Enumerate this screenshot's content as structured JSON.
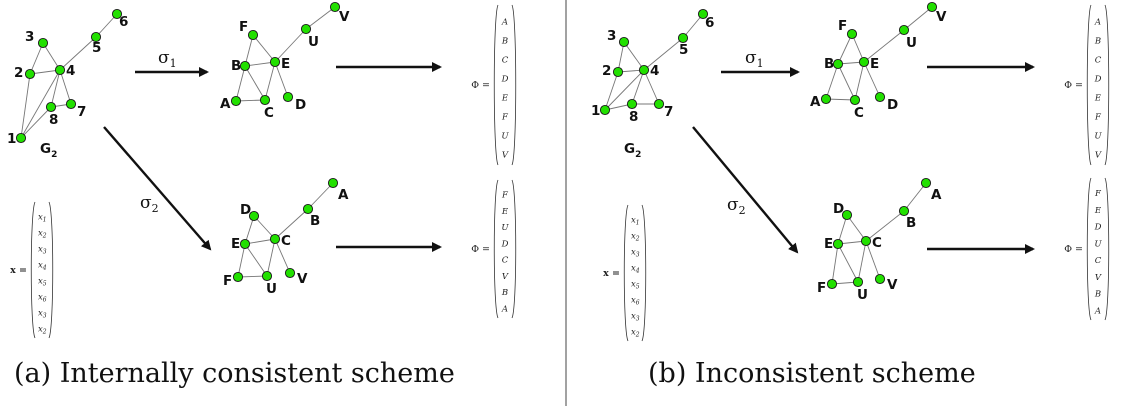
{
  "node_color": "#22e000",
  "panels": [
    {
      "id": "a",
      "caption": "(a) Internally consistent scheme",
      "g2": {
        "nodes": [
          "1",
          "2",
          "3",
          "4",
          "5",
          "6",
          "7",
          "8"
        ],
        "edges": [
          [
            "1",
            "8"
          ],
          [
            "8",
            "7"
          ],
          [
            "1",
            "2"
          ],
          [
            "2",
            "3"
          ],
          [
            "2",
            "4"
          ],
          [
            "3",
            "4"
          ],
          [
            "4",
            "5"
          ],
          [
            "5",
            "6"
          ],
          [
            "4",
            "8"
          ],
          [
            "4",
            "7"
          ],
          [
            "1",
            "4"
          ]
        ],
        "name": "G",
        "name_sub": "2"
      },
      "sigma1": {
        "label": "σ",
        "sub": "1"
      },
      "sigma2": {
        "label": "σ",
        "sub": "2"
      },
      "g_top": {
        "nodes": [
          "F",
          "B",
          "E",
          "U",
          "V",
          "A",
          "C",
          "D"
        ],
        "edges": [
          [
            "F",
            "B"
          ],
          [
            "F",
            "E"
          ],
          [
            "B",
            "E"
          ],
          [
            "E",
            "U"
          ],
          [
            "U",
            "V"
          ],
          [
            "B",
            "A"
          ],
          [
            "A",
            "C"
          ],
          [
            "C",
            "E"
          ],
          [
            "E",
            "D"
          ],
          [
            "B",
            "C"
          ]
        ]
      },
      "g_bot": {
        "nodes": [
          "D",
          "E",
          "C",
          "B",
          "A",
          "F",
          "U",
          "V"
        ],
        "edges": [
          [
            "D",
            "E"
          ],
          [
            "D",
            "C"
          ],
          [
            "E",
            "C"
          ],
          [
            "C",
            "B"
          ],
          [
            "B",
            "A"
          ],
          [
            "E",
            "F"
          ],
          [
            "F",
            "U"
          ],
          [
            "U",
            "C"
          ],
          [
            "C",
            "V"
          ],
          [
            "E",
            "U"
          ]
        ]
      },
      "x_vector": {
        "name": "x",
        "entries": [
          "x1",
          "x2",
          "x3",
          "x4",
          "x5",
          "x6",
          "x3",
          "x2"
        ]
      },
      "phi_top": {
        "name": "Φ",
        "entries": [
          "A",
          "B",
          "C",
          "D",
          "E",
          "F",
          "U",
          "V"
        ]
      },
      "phi_bot": {
        "name": "Φ",
        "entries": [
          "F",
          "E",
          "U",
          "D",
          "C",
          "V",
          "B",
          "A"
        ]
      }
    },
    {
      "id": "b",
      "caption": "(b) Inconsistent scheme",
      "g2": {
        "nodes": [
          "1",
          "2",
          "3",
          "4",
          "5",
          "6",
          "7",
          "8"
        ],
        "edges": [
          [
            "1",
            "8"
          ],
          [
            "8",
            "7"
          ],
          [
            "1",
            "2"
          ],
          [
            "2",
            "3"
          ],
          [
            "2",
            "4"
          ],
          [
            "3",
            "4"
          ],
          [
            "4",
            "5"
          ],
          [
            "5",
            "6"
          ],
          [
            "4",
            "8"
          ],
          [
            "4",
            "7"
          ],
          [
            "1",
            "4"
          ]
        ],
        "name": "G",
        "name_sub": "2"
      },
      "sigma1": {
        "label": "σ",
        "sub": "1"
      },
      "sigma2": {
        "label": "σ",
        "sub": "2"
      },
      "g_top": {
        "nodes": [
          "F",
          "B",
          "E",
          "U",
          "V",
          "A",
          "C",
          "D"
        ],
        "edges": [
          [
            "F",
            "B"
          ],
          [
            "F",
            "E"
          ],
          [
            "B",
            "E"
          ],
          [
            "E",
            "U"
          ],
          [
            "U",
            "V"
          ],
          [
            "B",
            "A"
          ],
          [
            "A",
            "C"
          ],
          [
            "C",
            "E"
          ],
          [
            "E",
            "D"
          ],
          [
            "B",
            "C"
          ]
        ]
      },
      "g_bot": {
        "nodes": [
          "D",
          "E",
          "C",
          "B",
          "A",
          "F",
          "U",
          "V"
        ],
        "edges": [
          [
            "D",
            "E"
          ],
          [
            "D",
            "C"
          ],
          [
            "E",
            "C"
          ],
          [
            "C",
            "B"
          ],
          [
            "B",
            "A"
          ],
          [
            "E",
            "F"
          ],
          [
            "F",
            "U"
          ],
          [
            "U",
            "C"
          ],
          [
            "C",
            "V"
          ],
          [
            "E",
            "U"
          ]
        ]
      },
      "x_vector": {
        "name": "x",
        "entries": [
          "x1",
          "x2",
          "x3",
          "x4",
          "x5",
          "x6",
          "x3",
          "x2"
        ]
      },
      "phi_top": {
        "name": "Φ",
        "entries": [
          "A",
          "B",
          "C",
          "D",
          "E",
          "F",
          "U",
          "V"
        ]
      },
      "phi_bot": {
        "name": "Φ",
        "entries": [
          "F",
          "E",
          "D",
          "U",
          "C",
          "V",
          "B",
          "A"
        ]
      }
    }
  ]
}
